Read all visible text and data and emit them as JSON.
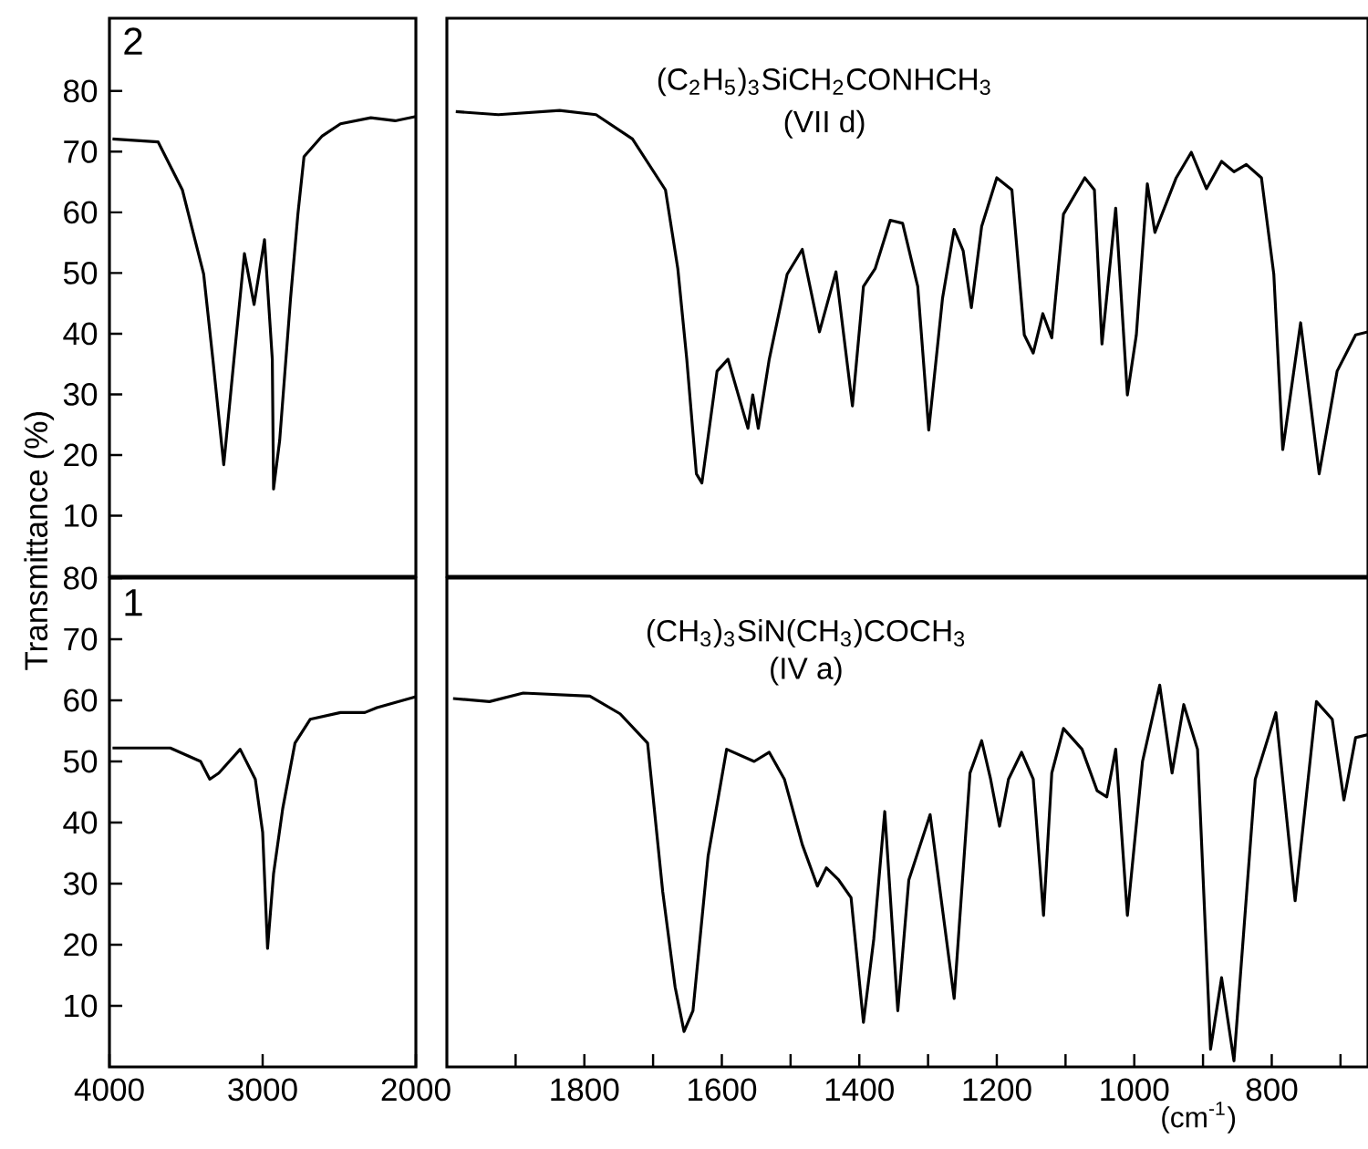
{
  "chart_data": [
    {
      "type": "line",
      "color": "#000000",
      "annotations": [
        "2"
      ],
      "xlim": [
        4000,
        2000
      ],
      "ylim": [
        0,
        92
      ],
      "yticks": [
        10,
        20,
        30,
        40,
        50,
        60,
        70,
        80
      ],
      "tick_labels": "y",
      "x": [
        3980,
        3682,
        3524,
        3385,
        3325,
        3254,
        3187,
        3119,
        3056,
        2988,
        2937,
        2929,
        2889,
        2818,
        2770,
        2730,
        2611,
        2492,
        2294,
        2135,
        2000
      ],
      "values": [
        72.1,
        71.6,
        63.7,
        49.8,
        35.8,
        18.4,
        35.8,
        53.2,
        44.8,
        55.5,
        35.8,
        14.4,
        22.4,
        45.8,
        59.7,
        69.2,
        72.6,
        74.6,
        75.6,
        75.1,
        75.8
      ]
    },
    {
      "type": "line",
      "color": "#000000",
      "annotations": [
        "(C$_{2}$H$_{5}$)$_{3}$SiCH$_{2}$CONHCH$_{3}$",
        "(VII d)"
      ],
      "xlim": [
        2000,
        660
      ],
      "ylim": [
        0,
        92
      ],
      "tick_labels": false,
      "x": [
        1987,
        1925,
        1836,
        1783,
        1730,
        1682,
        1664,
        1651,
        1637,
        1629,
        1607,
        1591,
        1576,
        1562,
        1555,
        1547,
        1531,
        1505,
        1483,
        1458,
        1434,
        1410,
        1394,
        1377,
        1355,
        1337,
        1315,
        1299,
        1279,
        1262,
        1249,
        1237,
        1222,
        1200,
        1178,
        1160,
        1147,
        1133,
        1120,
        1103,
        1072,
        1058,
        1047,
        1027,
        1010,
        997,
        981,
        970,
        939,
        917,
        895,
        873,
        855,
        837,
        815,
        797,
        784,
        758,
        731,
        705,
        678,
        660
      ],
      "values": [
        76.6,
        76.1,
        76.8,
        76.1,
        72.1,
        63.7,
        50.7,
        35.8,
        16.9,
        15.4,
        33.8,
        35.8,
        29.9,
        24.4,
        29.9,
        24.4,
        35.8,
        49.8,
        53.9,
        40.3,
        50.2,
        28.1,
        47.8,
        50.7,
        58.7,
        58.2,
        47.8,
        24.1,
        45.8,
        57.2,
        53.7,
        44.3,
        57.7,
        65.7,
        63.7,
        39.8,
        36.8,
        43.3,
        39.3,
        59.7,
        65.7,
        63.7,
        38.3,
        60.7,
        29.9,
        39.8,
        64.7,
        56.7,
        65.7,
        69.9,
        63.9,
        68.4,
        66.7,
        67.9,
        65.7,
        49.8,
        20.9,
        41.8,
        16.9,
        33.8,
        39.8,
        40.3
      ]
    },
    {
      "type": "line",
      "color": "#000000",
      "annotations": [
        "1"
      ],
      "ylabel": "Transmittance (%)",
      "xlim": [
        4000,
        2000
      ],
      "xticks": [
        4000,
        3000,
        2000
      ],
      "ylim": [
        0,
        80
      ],
      "yticks": [
        10,
        20,
        30,
        40,
        50,
        60,
        70,
        80
      ],
      "x": [
        3980,
        3603,
        3405,
        3345,
        3286,
        3147,
        3048,
        3000,
        2968,
        2929,
        2869,
        2789,
        2690,
        2492,
        2333,
        2254,
        2000
      ],
      "values": [
        52.2,
        52.2,
        50.0,
        47.1,
        48.1,
        52.0,
        47.1,
        38.4,
        19.4,
        31.6,
        42.3,
        53.0,
        56.9,
        58.0,
        58.0,
        58.8,
        60.6
      ]
    },
    {
      "type": "line",
      "color": "#000000",
      "annotations": [
        "(CH$_{3}$)$_{3}$SiN(CH$_{3}$)COCH$_{3}$",
        "(IV a)"
      ],
      "xlabel": "(cm$^{-1}$)",
      "xlim": [
        2000,
        660
      ],
      "ylim": [
        0,
        80
      ],
      "tick_labels": "x",
      "xticks": [
        {
          "value": 1900,
          "label": null
        },
        1800,
        {
          "value": 1700,
          "label": null
        },
        1600,
        {
          "value": 1500,
          "label": null
        },
        1400,
        {
          "value": 1300,
          "label": null
        },
        1200,
        {
          "value": 1100,
          "label": null
        },
        1000,
        {
          "value": 900,
          "label": null
        },
        800,
        {
          "value": 700,
          "label": null
        }
      ],
      "x": [
        1991,
        1938,
        1889,
        1792,
        1748,
        1708,
        1686,
        1668,
        1655,
        1642,
        1620,
        1593,
        1553,
        1531,
        1509,
        1483,
        1461,
        1448,
        1430,
        1412,
        1394,
        1379,
        1363,
        1344,
        1328,
        1297,
        1262,
        1239,
        1222,
        1209,
        1196,
        1183,
        1164,
        1147,
        1132,
        1120,
        1103,
        1076,
        1054,
        1040,
        1027,
        1010,
        988,
        963,
        945,
        928,
        908,
        889,
        873,
        855,
        824,
        794,
        766,
        735,
        712,
        695,
        678,
        660
      ],
      "values": [
        60.3,
        59.8,
        61.2,
        60.7,
        57.8,
        53.0,
        28.7,
        13.1,
        5.8,
        9.2,
        34.5,
        52.0,
        50.0,
        51.5,
        47.1,
        36.4,
        29.6,
        32.6,
        30.6,
        27.7,
        7.3,
        20.9,
        41.8,
        9.2,
        30.6,
        41.3,
        11.2,
        48.1,
        53.4,
        47.1,
        39.4,
        47.1,
        51.5,
        47.1,
        24.8,
        48.1,
        55.4,
        52.0,
        45.2,
        44.2,
        52.0,
        24.8,
        50.0,
        62.5,
        48.1,
        59.3,
        52.0,
        2.9,
        14.6,
        1.0,
        47.1,
        58.0,
        27.2,
        59.8,
        56.9,
        43.7,
        53.9,
        54.4
      ]
    }
  ]
}
